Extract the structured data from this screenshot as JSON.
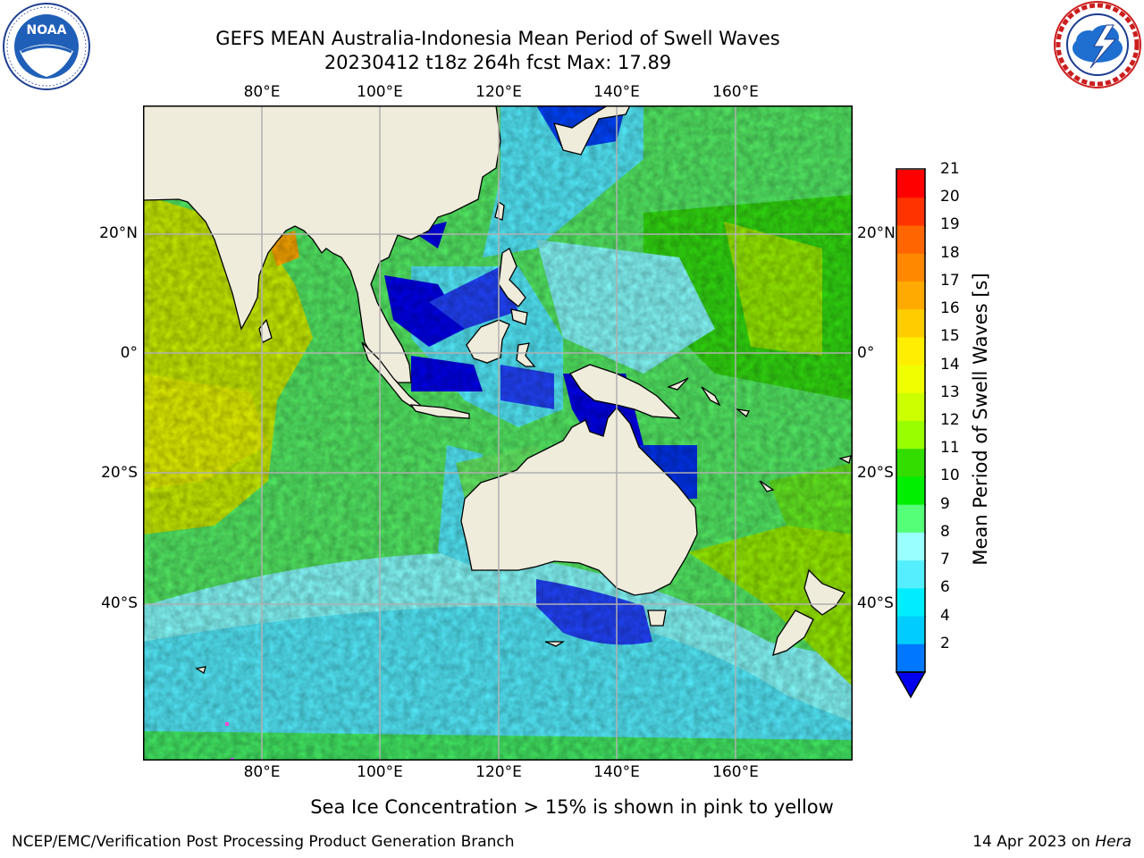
{
  "header": {
    "title_line1": "GEFS MEAN Australia-Indonesia Mean Period of Swell Waves",
    "title_line2": "20230412 t18z 264h fcst   Max: 17.89"
  },
  "logos": {
    "left": {
      "name": "NOAA",
      "ring_text": "NATIONAL OCEANIC AND ATMOSPHERIC ADMINISTRATION · U.S. DEPARTMENT OF COMMERCE"
    },
    "right": {
      "name": "NATIONAL WEATHER SERVICE"
    }
  },
  "map": {
    "lon_labels": [
      "80°E",
      "100°E",
      "120°E",
      "140°E",
      "160°E"
    ],
    "lat_labels": [
      "20°N",
      "0°",
      "20°S",
      "40°S"
    ],
    "land_color": "#efecdc",
    "grid_color": "#b0b0b0"
  },
  "colorbar": {
    "title": "Mean Period of Swell Waves [s]",
    "ticks": [
      "21",
      "20",
      "19",
      "18",
      "17",
      "16",
      "15",
      "14",
      "13",
      "12",
      "11",
      "10",
      "9",
      "8",
      "7",
      "6",
      "4",
      "2"
    ],
    "colors_top_to_bottom": [
      "#ff0000",
      "#ff3300",
      "#ff6600",
      "#ff8800",
      "#ffaa00",
      "#ffcc00",
      "#ffee00",
      "#f0ff00",
      "#ccff00",
      "#99ff00",
      "#33dd00",
      "#00ee00",
      "#55ff77",
      "#99ffff",
      "#55eeff",
      "#00eeff",
      "#00ccff",
      "#0077ff"
    ],
    "extend_color": "#0000ee"
  },
  "caption": "Sea Ice Concentration > 15% is shown in pink to yellow",
  "footer": {
    "left": "NCEP/EMC/Verification Post Processing Product Generation Branch",
    "date": "14 Apr 2023 on ",
    "machine": "Hera"
  }
}
